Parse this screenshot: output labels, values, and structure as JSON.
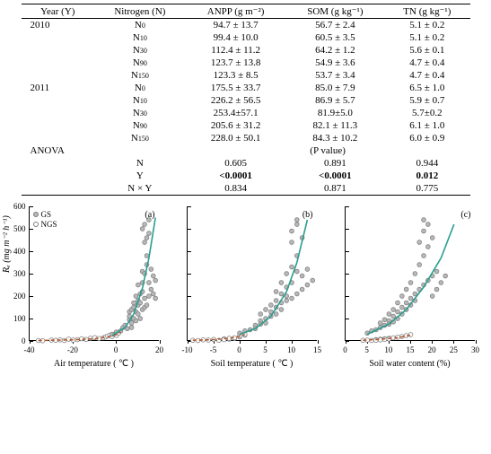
{
  "table": {
    "headers": [
      "Year (Y)",
      "Nitrogen (N)",
      "ANPP (g m⁻²)",
      "SOM (g kg⁻¹)",
      "TN (g kg⁻¹)"
    ],
    "rows": [
      {
        "year": "2010",
        "n": "N",
        "nsub": "0",
        "anpp": "94.7 ± 13.7",
        "som": "56.7 ± 2.4",
        "tn": "5.1 ± 0.2"
      },
      {
        "year": "",
        "n": "N",
        "nsub": "10",
        "anpp": "99.4 ± 10.0",
        "som": "60.5 ± 3.5",
        "tn": "5.1 ± 0.2"
      },
      {
        "year": "",
        "n": "N",
        "nsub": "30",
        "anpp": "112.4 ± 11.2",
        "som": "64.2 ± 1.2",
        "tn": "5.6 ± 0.1"
      },
      {
        "year": "",
        "n": "N",
        "nsub": "90",
        "anpp": "123.7 ± 13.8",
        "som": "54.9 ± 3.6",
        "tn": "4.7 ± 0.4"
      },
      {
        "year": "",
        "n": "N",
        "nsub": "150",
        "anpp": "123.3 ± 8.5",
        "som": "53.7 ± 3.4",
        "tn": "4.7 ± 0.4"
      },
      {
        "year": "2011",
        "n": "N",
        "nsub": "0",
        "anpp": "175.5 ± 33.7",
        "som": "85.0 ± 7.9",
        "tn": "6.5 ± 1.0"
      },
      {
        "year": "",
        "n": "N",
        "nsub": "10",
        "anpp": "226.2 ± 56.5",
        "som": "86.9 ± 5.7",
        "tn": "5.9 ± 0.7"
      },
      {
        "year": "",
        "n": "N",
        "nsub": "30",
        "anpp": "253.4±57.1",
        "som": "81.9±5.0",
        "tn": "5.7±0.2"
      },
      {
        "year": "",
        "n": "N",
        "nsub": "90",
        "anpp": "205.6 ± 31.2",
        "som": "82.1 ± 11.3",
        "tn": "6.1 ± 1.0"
      },
      {
        "year": "",
        "n": "N",
        "nsub": "150",
        "anpp": "228.0 ± 50.1",
        "som": "84.3 ± 10.2",
        "tn": "6.0 ± 0.9"
      }
    ],
    "anova_label": "ANOVA",
    "pval_label": "(P value)",
    "anova": [
      {
        "label": "N",
        "anpp": "0.605",
        "som": "0.891",
        "tn": "0.944",
        "bold": false
      },
      {
        "label": "Y",
        "anpp": "<0.0001",
        "som": "<0.0001",
        "tn": "0.012",
        "bold": true
      },
      {
        "label": "N × Y",
        "anpp": "0.834",
        "som": "0.871",
        "tn": "0.775",
        "bold": false
      }
    ]
  },
  "charts": {
    "yaxis_label": "Rₑ (mg m⁻² h⁻¹)",
    "ylim": [
      0,
      600
    ],
    "ytick_step": 100,
    "legend": [
      {
        "label": "GS",
        "fill": "#b8b8b8",
        "stroke": "#7a7a7a"
      },
      {
        "label": "NGS",
        "fill": "#ffffff",
        "stroke": "#7a7a7a"
      }
    ],
    "gs_marker": {
      "fill": "#b8b8b8",
      "stroke": "#7a7a7a",
      "r": 2.4
    },
    "ngs_marker": {
      "fill": "#ffffff",
      "stroke": "#7a7a7a",
      "r": 2.4
    },
    "panels": [
      {
        "letter": "(a)",
        "xlabel": "Air temperature ( ℃ )",
        "xlim": [
          -40,
          20
        ],
        "xticks": [
          -40,
          -20,
          0,
          20
        ],
        "gs_points": [
          [
            -2,
            30
          ],
          [
            0,
            40
          ],
          [
            2,
            45
          ],
          [
            3,
            60
          ],
          [
            4,
            70
          ],
          [
            5,
            55
          ],
          [
            6,
            95
          ],
          [
            6,
            130
          ],
          [
            6,
            110
          ],
          [
            7,
            80
          ],
          [
            7,
            140
          ],
          [
            7,
            60
          ],
          [
            8,
            170
          ],
          [
            8,
            100
          ],
          [
            8,
            150
          ],
          [
            9,
            90
          ],
          [
            9,
            130
          ],
          [
            9,
            200
          ],
          [
            10,
            120
          ],
          [
            10,
            180
          ],
          [
            10,
            160
          ],
          [
            10,
            250
          ],
          [
            11,
            100
          ],
          [
            11,
            170
          ],
          [
            11,
            210
          ],
          [
            12,
            140
          ],
          [
            12,
            260
          ],
          [
            12,
            220
          ],
          [
            12,
            310
          ],
          [
            12,
            500
          ],
          [
            13,
            150
          ],
          [
            13,
            300
          ],
          [
            13,
            190
          ],
          [
            13,
            440
          ],
          [
            13,
            520
          ],
          [
            14,
            160
          ],
          [
            14,
            380
          ],
          [
            14,
            460
          ],
          [
            14,
            340
          ],
          [
            15,
            200
          ],
          [
            15,
            260
          ],
          [
            15,
            480
          ],
          [
            15,
            540
          ],
          [
            16,
            230
          ],
          [
            16,
            320
          ],
          [
            17,
            210
          ],
          [
            17,
            290
          ],
          [
            18,
            190
          ],
          [
            18,
            270
          ]
        ],
        "ngs_points": [
          [
            -36,
            2
          ],
          [
            -34,
            1
          ],
          [
            -30,
            4
          ],
          [
            -28,
            3
          ],
          [
            -26,
            5
          ],
          [
            -24,
            2
          ],
          [
            -22,
            8
          ],
          [
            -20,
            4
          ],
          [
            -18,
            6
          ],
          [
            -16,
            10
          ],
          [
            -14,
            7
          ],
          [
            -12,
            12
          ],
          [
            -10,
            15
          ],
          [
            -8,
            11
          ],
          [
            -6,
            14
          ],
          [
            -5,
            18
          ],
          [
            -4,
            22
          ],
          [
            -3,
            26
          ],
          [
            -2,
            20
          ],
          [
            -1,
            30
          ],
          [
            0,
            25
          ],
          [
            1,
            35
          ]
        ],
        "gs_line": {
          "color": "#2a9d8f",
          "width": 1.6,
          "dash": "",
          "pts": [
            [
              -2,
              25
            ],
            [
              4,
              60
            ],
            [
              8,
              120
            ],
            [
              12,
              235
            ],
            [
              15,
              370
            ],
            [
              18,
              550
            ]
          ]
        },
        "ngs_line": {
          "color": "#b55a2f",
          "width": 1.6,
          "dash": "4,3",
          "pts": [
            [
              -36,
              2
            ],
            [
              -20,
              5
            ],
            [
              -10,
              10
            ],
            [
              -4,
              18
            ],
            [
              0,
              28
            ],
            [
              2,
              40
            ]
          ]
        }
      },
      {
        "letter": "(b)",
        "xlabel": "Soil temperature ( ℃ )",
        "xlim": [
          -10,
          15
        ],
        "xticks": [
          -10,
          -5,
          0,
          5,
          10,
          15
        ],
        "gs_points": [
          [
            0,
            35
          ],
          [
            1,
            45
          ],
          [
            2,
            50
          ],
          [
            3,
            70
          ],
          [
            3,
            55
          ],
          [
            4,
            90
          ],
          [
            4,
            120
          ],
          [
            4,
            75
          ],
          [
            5,
            100
          ],
          [
            5,
            140
          ],
          [
            5,
            80
          ],
          [
            6,
            110
          ],
          [
            6,
            160
          ],
          [
            6,
            130
          ],
          [
            7,
            150
          ],
          [
            7,
            180
          ],
          [
            7,
            120
          ],
          [
            7,
            220
          ],
          [
            8,
            170
          ],
          [
            8,
            210
          ],
          [
            8,
            140
          ],
          [
            8,
            260
          ],
          [
            9,
            180
          ],
          [
            9,
            240
          ],
          [
            9,
            300
          ],
          [
            9,
            200
          ],
          [
            10,
            190
          ],
          [
            10,
            260
          ],
          [
            10,
            330
          ],
          [
            10,
            440
          ],
          [
            10,
            490
          ],
          [
            11,
            210
          ],
          [
            11,
            310
          ],
          [
            11,
            380
          ],
          [
            11,
            520
          ],
          [
            11,
            540
          ],
          [
            12,
            230
          ],
          [
            12,
            290
          ],
          [
            12,
            460
          ],
          [
            13,
            250
          ],
          [
            13,
            320
          ],
          [
            14,
            270
          ]
        ],
        "ngs_points": [
          [
            -9,
            3
          ],
          [
            -8,
            2
          ],
          [
            -7,
            5
          ],
          [
            -6,
            4
          ],
          [
            -5,
            7
          ],
          [
            -4,
            3
          ],
          [
            -3,
            10
          ],
          [
            -3,
            6
          ],
          [
            -2,
            8
          ],
          [
            -2,
            12
          ],
          [
            -1,
            11
          ],
          [
            -1,
            14
          ],
          [
            0,
            18
          ],
          [
            0,
            22
          ],
          [
            1,
            26
          ],
          [
            1,
            30
          ]
        ],
        "gs_line": {
          "color": "#2a9d8f",
          "width": 1.6,
          "dash": "",
          "pts": [
            [
              0,
              30
            ],
            [
              3,
              55
            ],
            [
              6,
              110
            ],
            [
              9,
              220
            ],
            [
              11,
              350
            ],
            [
              13,
              540
            ]
          ]
        },
        "ngs_line": {
          "color": "#b55a2f",
          "width": 1.6,
          "dash": "4,3",
          "pts": [
            [
              -9,
              3
            ],
            [
              -5,
              6
            ],
            [
              -2,
              12
            ],
            [
              0,
              20
            ],
            [
              1,
              30
            ]
          ]
        }
      },
      {
        "letter": "(c)",
        "xlabel": "Soil water content (%)",
        "xlim": [
          0,
          30
        ],
        "xticks": [
          0,
          5,
          10,
          15,
          20,
          25,
          30
        ],
        "gs_points": [
          [
            5,
            35
          ],
          [
            6,
            45
          ],
          [
            7,
            50
          ],
          [
            8,
            60
          ],
          [
            8,
            80
          ],
          [
            9,
            70
          ],
          [
            9,
            95
          ],
          [
            10,
            90
          ],
          [
            10,
            120
          ],
          [
            10,
            75
          ],
          [
            11,
            110
          ],
          [
            11,
            140
          ],
          [
            11,
            85
          ],
          [
            12,
            130
          ],
          [
            12,
            170
          ],
          [
            12,
            100
          ],
          [
            13,
            150
          ],
          [
            13,
            200
          ],
          [
            13,
            120
          ],
          [
            14,
            170
          ],
          [
            14,
            230
          ],
          [
            14,
            140
          ],
          [
            15,
            190
          ],
          [
            15,
            260
          ],
          [
            15,
            160
          ],
          [
            16,
            210
          ],
          [
            16,
            300
          ],
          [
            16,
            180
          ],
          [
            17,
            230
          ],
          [
            17,
            340
          ],
          [
            17,
            440
          ],
          [
            18,
            250
          ],
          [
            18,
            380
          ],
          [
            18,
            490
          ],
          [
            18,
            540
          ],
          [
            19,
            270
          ],
          [
            19,
            420
          ],
          [
            19,
            520
          ],
          [
            20,
            200
          ],
          [
            20,
            290
          ],
          [
            20,
            460
          ],
          [
            21,
            230
          ],
          [
            21,
            310
          ],
          [
            22,
            260
          ],
          [
            23,
            290
          ]
        ],
        "ngs_points": [
          [
            4,
            3
          ],
          [
            5,
            4
          ],
          [
            6,
            2
          ],
          [
            7,
            6
          ],
          [
            7,
            3
          ],
          [
            8,
            8
          ],
          [
            8,
            5
          ],
          [
            9,
            10
          ],
          [
            9,
            7
          ],
          [
            10,
            12
          ],
          [
            10,
            9
          ],
          [
            11,
            14
          ],
          [
            12,
            17
          ],
          [
            13,
            20
          ],
          [
            14,
            24
          ],
          [
            15,
            28
          ]
        ],
        "gs_line": {
          "color": "#2a9d8f",
          "width": 1.6,
          "dash": "",
          "pts": [
            [
              5,
              30
            ],
            [
              10,
              75
            ],
            [
              14,
              140
            ],
            [
              18,
              240
            ],
            [
              22,
              370
            ],
            [
              25,
              520
            ]
          ]
        },
        "ngs_line": {
          "color": "#b55a2f",
          "width": 1.6,
          "dash": "4,3",
          "pts": [
            [
              4,
              3
            ],
            [
              8,
              7
            ],
            [
              12,
              15
            ],
            [
              15,
              26
            ]
          ]
        }
      }
    ]
  }
}
